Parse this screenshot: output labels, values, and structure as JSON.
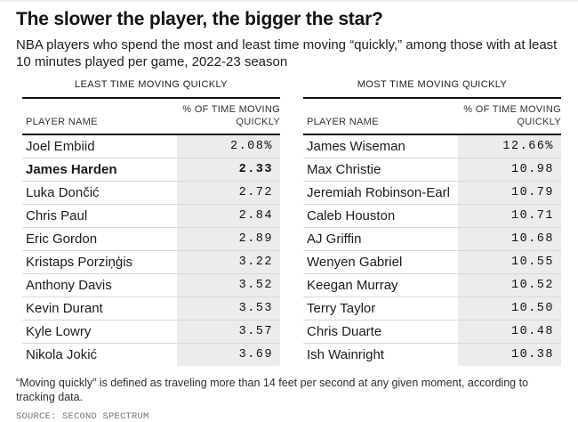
{
  "header": {
    "title": "The slower the player, the bigger the star?",
    "subtitle": "NBA players who spend the most and least time moving “quickly,” among those with at least 10 minutes played per game, 2022-23 season"
  },
  "tables": [
    {
      "group_label": "LEAST TIME MOVING QUICKLY",
      "columns": {
        "player": "PLAYER NAME",
        "value": "% OF TIME MOVING QUICKLY"
      },
      "rows": [
        {
          "player": "Joel Embiid",
          "value": "2.08%",
          "bold": false
        },
        {
          "player": "James Harden",
          "value": "2.33",
          "bold": true
        },
        {
          "player": "Luka Dončić",
          "value": "2.72",
          "bold": false
        },
        {
          "player": "Chris Paul",
          "value": "2.84",
          "bold": false
        },
        {
          "player": "Eric Gordon",
          "value": "2.89",
          "bold": false
        },
        {
          "player": "Kristaps Porziņģis",
          "value": "3.22",
          "bold": false
        },
        {
          "player": "Anthony Davis",
          "value": "3.52",
          "bold": false
        },
        {
          "player": "Kevin Durant",
          "value": "3.53",
          "bold": false
        },
        {
          "player": "Kyle Lowry",
          "value": "3.57",
          "bold": false
        },
        {
          "player": "Nikola Jokić",
          "value": "3.69",
          "bold": false
        }
      ]
    },
    {
      "group_label": "MOST TIME MOVING QUICKLY",
      "columns": {
        "player": "PLAYER NAME",
        "value": "% OF TIME MOVING QUICKLY"
      },
      "rows": [
        {
          "player": "James Wiseman",
          "value": "12.66%",
          "bold": false
        },
        {
          "player": "Max Christie",
          "value": "10.98",
          "bold": false
        },
        {
          "player": "Jeremiah Robinson-Earl",
          "value": "10.79",
          "bold": false
        },
        {
          "player": "Caleb Houston",
          "value": "10.71",
          "bold": false
        },
        {
          "player": "AJ Griffin",
          "value": "10.68",
          "bold": false
        },
        {
          "player": "Wenyen Gabriel",
          "value": "10.55",
          "bold": false
        },
        {
          "player": "Keegan Murray",
          "value": "10.52",
          "bold": false
        },
        {
          "player": "Terry Taylor",
          "value": "10.50",
          "bold": false
        },
        {
          "player": "Chris Duarte",
          "value": "10.48",
          "bold": false
        },
        {
          "player": "Ish Wainright",
          "value": "10.38",
          "bold": false
        }
      ]
    }
  ],
  "footer": {
    "footnote": "“Moving quickly” is defined as traveling more than 14 feet per second at any given moment, according to tracking data.",
    "source": "SOURCE: SECOND SPECTRUM"
  },
  "colors": {
    "value_cell_bg": "#ececec",
    "row_divider": "#d9d9d9",
    "header_rule": "#111111",
    "source_text": "#757575"
  },
  "chart_data": {
    "type": "table",
    "title": "The slower the player, the bigger the star?",
    "subtitle": "NBA players who spend the most and least time moving “quickly,” among those with at least 10 minutes played per game, 2022-23 season",
    "tables": [
      {
        "label": "LEAST TIME MOVING QUICKLY",
        "columns": [
          "PLAYER NAME",
          "% OF TIME MOVING QUICKLY"
        ],
        "players": [
          "Joel Embiid",
          "James Harden",
          "Luka Dončić",
          "Chris Paul",
          "Eric Gordon",
          "Kristaps Porziņģis",
          "Anthony Davis",
          "Kevin Durant",
          "Kyle Lowry",
          "Nikola Jokić"
        ],
        "values": [
          2.08,
          2.33,
          2.72,
          2.84,
          2.89,
          3.22,
          3.52,
          3.53,
          3.57,
          3.69
        ],
        "highlighted_player": "James Harden"
      },
      {
        "label": "MOST TIME MOVING QUICKLY",
        "columns": [
          "PLAYER NAME",
          "% OF TIME MOVING QUICKLY"
        ],
        "players": [
          "James Wiseman",
          "Max Christie",
          "Jeremiah Robinson-Earl",
          "Caleb Houston",
          "AJ Griffin",
          "Wenyen Gabriel",
          "Keegan Murray",
          "Terry Taylor",
          "Chris Duarte",
          "Ish Wainright"
        ],
        "values": [
          12.66,
          10.98,
          10.79,
          10.71,
          10.68,
          10.55,
          10.52,
          10.5,
          10.48,
          10.38
        ]
      }
    ],
    "footnote": "“Moving quickly” is defined as traveling more than 14 feet per second at any given moment, according to tracking data.",
    "source": "SOURCE: SECOND SPECTRUM"
  }
}
